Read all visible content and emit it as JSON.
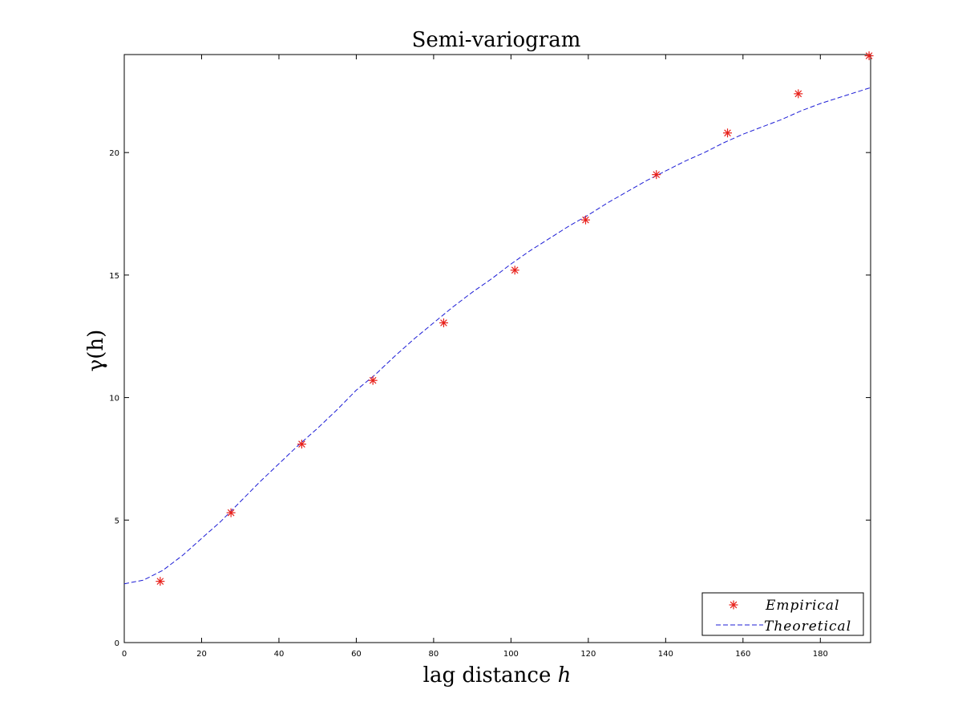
{
  "chart_data": {
    "type": "scatter",
    "title": "Semi-variogram",
    "xlabel_text": "lag distance ",
    "xlabel_var": "h",
    "ylabel_text": "γ(h)",
    "xlim": [
      0,
      193
    ],
    "ylim": [
      0,
      24
    ],
    "xticks": [
      0,
      20,
      40,
      60,
      80,
      100,
      120,
      140,
      160,
      180
    ],
    "yticks": [
      0,
      5,
      10,
      15,
      20
    ],
    "grid": false,
    "legend_position": "bottom-right",
    "series": [
      {
        "name": "Empirical",
        "kind": "markers",
        "marker": "asterisk",
        "color": "#e8201a",
        "x": [
          9.3,
          27.6,
          45.9,
          64.3,
          82.6,
          101.0,
          119.3,
          137.6,
          156.0,
          174.3,
          192.6
        ],
        "y": [
          2.5,
          5.3,
          8.1,
          10.7,
          13.05,
          15.2,
          17.25,
          19.1,
          20.8,
          22.4,
          23.95
        ]
      },
      {
        "name": "Theoretical",
        "kind": "line",
        "dash": "dashed",
        "color": "#1c1cd6",
        "x": [
          0,
          5,
          10,
          15,
          20,
          25,
          30,
          35,
          40,
          45,
          50,
          55,
          60,
          65,
          70,
          75,
          80,
          85,
          90,
          95,
          100,
          105,
          110,
          115,
          120,
          125,
          130,
          135,
          140,
          145,
          150,
          155,
          160,
          165,
          170,
          175,
          180,
          185,
          190,
          193
        ],
        "y": [
          2.4,
          2.55,
          2.95,
          3.55,
          4.25,
          4.95,
          5.75,
          6.55,
          7.3,
          8.05,
          8.75,
          9.5,
          10.3,
          10.95,
          11.7,
          12.4,
          13.05,
          13.7,
          14.3,
          14.85,
          15.45,
          16.0,
          16.5,
          17.0,
          17.45,
          17.95,
          18.4,
          18.85,
          19.25,
          19.65,
          20.0,
          20.4,
          20.75,
          21.05,
          21.35,
          21.7,
          22.0,
          22.25,
          22.5,
          22.65
        ]
      }
    ]
  }
}
